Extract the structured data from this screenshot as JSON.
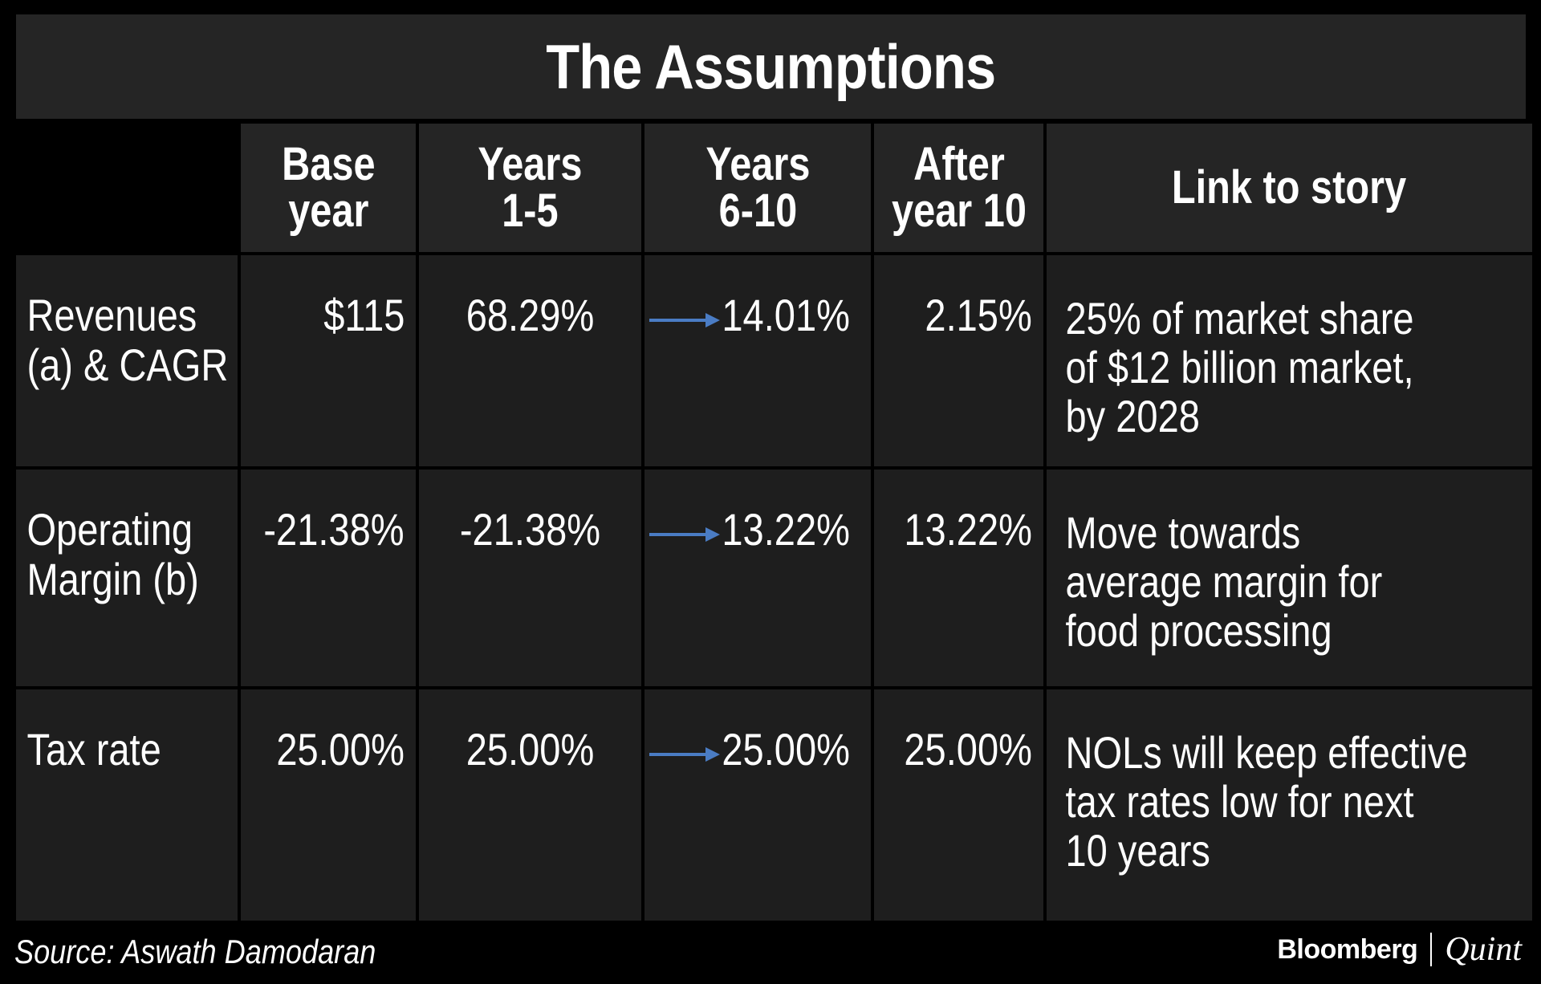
{
  "title": "The Assumptions",
  "columns": [
    {
      "label": "Base\nyear"
    },
    {
      "label": "Years\n1-5"
    },
    {
      "label": "Years\n6-10"
    },
    {
      "label": "After\nyear 10"
    },
    {
      "label": "Link to story"
    }
  ],
  "rows": [
    {
      "label": "Revenues\n(a) & CAGR",
      "base_year": "$115",
      "years_1_5": "68.29%",
      "years_6_10": "14.01%",
      "after_year_10": "2.15%",
      "story": [
        "25% of market share",
        "of $12 billion market,",
        "by 2028"
      ]
    },
    {
      "label": "Operating\nMargin (b)",
      "base_year": "-21.38%",
      "years_1_5": "-21.38%",
      "years_6_10": "13.22%",
      "after_year_10": "13.22%",
      "story": [
        "Move towards",
        "average margin for",
        "food processing"
      ]
    },
    {
      "label": "Tax rate",
      "base_year": "25.00%",
      "years_1_5": "25.00%",
      "years_6_10": "25.00%",
      "after_year_10": "25.00%",
      "story": [
        "NOLs will keep effective",
        "tax rates low for next",
        "10 years"
      ]
    }
  ],
  "footer": {
    "source": "Source: Aswath Damodaran",
    "brand_primary": "Bloomberg",
    "brand_secondary": "Quint"
  },
  "colors": {
    "background": "#000000",
    "cell": "#1e1e1e",
    "header": "#252525",
    "text": "#ffffff",
    "arrow": "#4a7cc4"
  },
  "icons": {
    "transition_arrow": "arrow-right-icon"
  }
}
